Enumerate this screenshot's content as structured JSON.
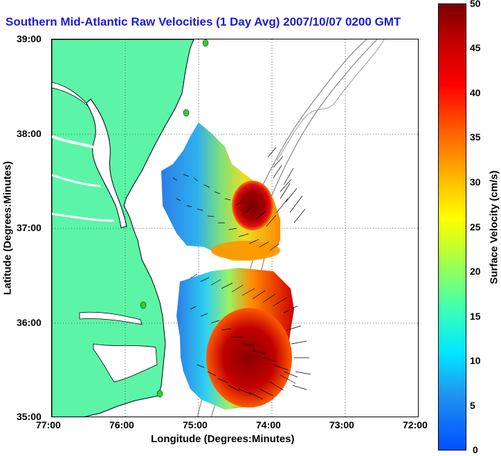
{
  "title": "Southern Mid-Atlantic Raw Velocities (1 Day Avg) 2007/10/07 0200 GMT",
  "map": {
    "xlabel": "Longitude (Degrees:Minutes)",
    "ylabel": "Latitude (Degrees:Minutes)",
    "x_ticks": [
      "77:00",
      "76:00",
      "75:00",
      "74:00",
      "73:00",
      "72:00"
    ],
    "y_ticks": [
      "39:00",
      "38:00",
      "37:00",
      "36:00",
      "35:00"
    ],
    "grid": "dotted",
    "land_color": "#5cf5a8",
    "station_color": "#33cc33"
  },
  "colorbar": {
    "label": "Surface Velocity (cm/s)",
    "ticks": [
      "50",
      "45",
      "40",
      "35",
      "30",
      "25",
      "20",
      "15",
      "10",
      "5",
      "0"
    ],
    "colors": [
      "#0000ff",
      "#00ffff",
      "#ffff00",
      "#ff0000",
      "#800000"
    ]
  }
}
